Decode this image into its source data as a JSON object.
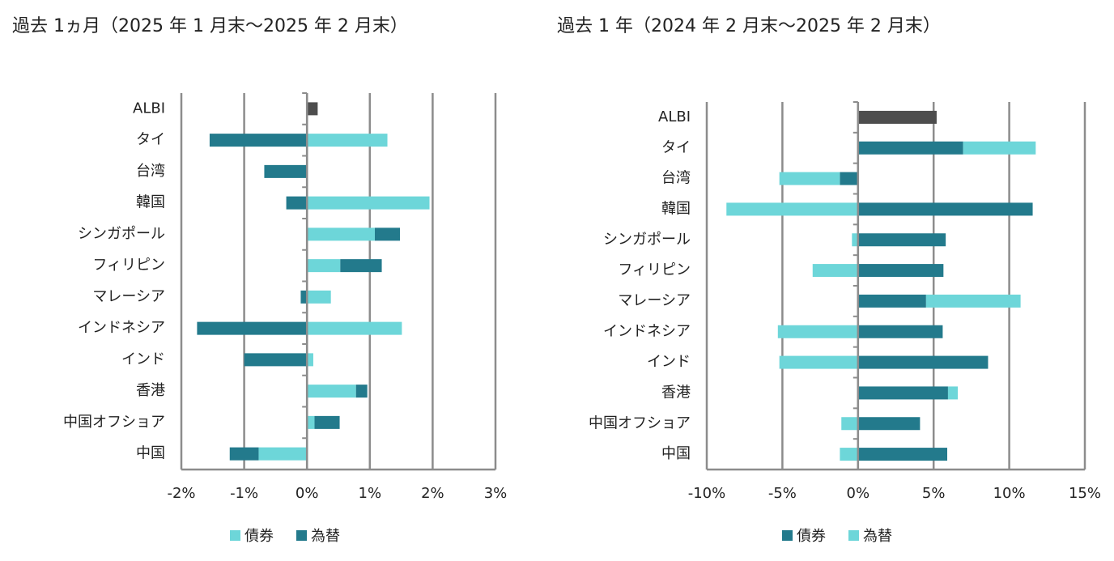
{
  "chart_data": [
    {
      "type": "bar",
      "orientation": "horizontal",
      "stacked": true,
      "title": "過去 1ヵ月（2025 年 1 月末〜2025 年 2 月末）",
      "categories": [
        "ALBI",
        "タイ",
        "台湾",
        "韓国",
        "シンガポール",
        "フィリピン",
        "マレーシア",
        "インドネシア",
        "インド",
        "香港",
        "中国オフショア",
        "中国"
      ],
      "benchmark": {
        "category_index": 0,
        "value": 0.17,
        "color": "#4d4d4d"
      },
      "series": [
        {
          "name": "債券",
          "color": "#6dd6d9",
          "values": [
            null,
            1.28,
            0,
            1.95,
            1.08,
            0.53,
            0.38,
            1.51,
            0.1,
            0.78,
            0.12,
            -0.77
          ]
        },
        {
          "name": "為替",
          "color": "#237a8c",
          "values": [
            null,
            -1.55,
            -0.68,
            -0.33,
            0.4,
            0.66,
            -0.1,
            -1.75,
            -1.0,
            0.18,
            0.4,
            -0.46
          ]
        }
      ],
      "xlim": [
        -2,
        3
      ],
      "xticks": [
        {
          "value": -2,
          "label": "-2%"
        },
        {
          "value": -1,
          "label": "-1%"
        },
        {
          "value": 0,
          "label": "0%"
        },
        {
          "value": 1,
          "label": "1%"
        },
        {
          "value": 2,
          "label": "2%"
        },
        {
          "value": 3,
          "label": "3%"
        }
      ],
      "grid": true,
      "legend": "bottom"
    },
    {
      "type": "bar",
      "orientation": "horizontal",
      "stacked": true,
      "title": "過去 1 年（2024 年 2 月末〜2025 年 2 月末）",
      "categories": [
        "ALBI",
        "タイ",
        "台湾",
        "韓国",
        "シンガポール",
        "フィリピン",
        "マレーシア",
        "インドネシア",
        "インド",
        "香港",
        "中国オフショア",
        "中国"
      ],
      "benchmark": {
        "category_index": 0,
        "value": 5.2,
        "color": "#4d4d4d"
      },
      "series": [
        {
          "name": "債券",
          "color": "#237a8c",
          "values": [
            null,
            6.95,
            -1.2,
            11.55,
            5.8,
            5.65,
            4.5,
            5.6,
            8.6,
            5.95,
            4.1,
            5.9
          ]
        },
        {
          "name": "為替",
          "color": "#6dd6d9",
          "values": [
            null,
            4.8,
            -4.0,
            -8.7,
            -0.4,
            -3.0,
            6.25,
            -5.3,
            -5.2,
            0.65,
            -1.1,
            -1.2
          ]
        }
      ],
      "xlim": [
        -10,
        15
      ],
      "xticks": [
        {
          "value": -10,
          "label": "-10%"
        },
        {
          "value": -5,
          "label": "-5%"
        },
        {
          "value": 0,
          "label": "0%"
        },
        {
          "value": 5,
          "label": "5%"
        },
        {
          "value": 10,
          "label": "10%"
        },
        {
          "value": 15,
          "label": "15%"
        }
      ],
      "grid": true,
      "legend": "bottom"
    }
  ]
}
